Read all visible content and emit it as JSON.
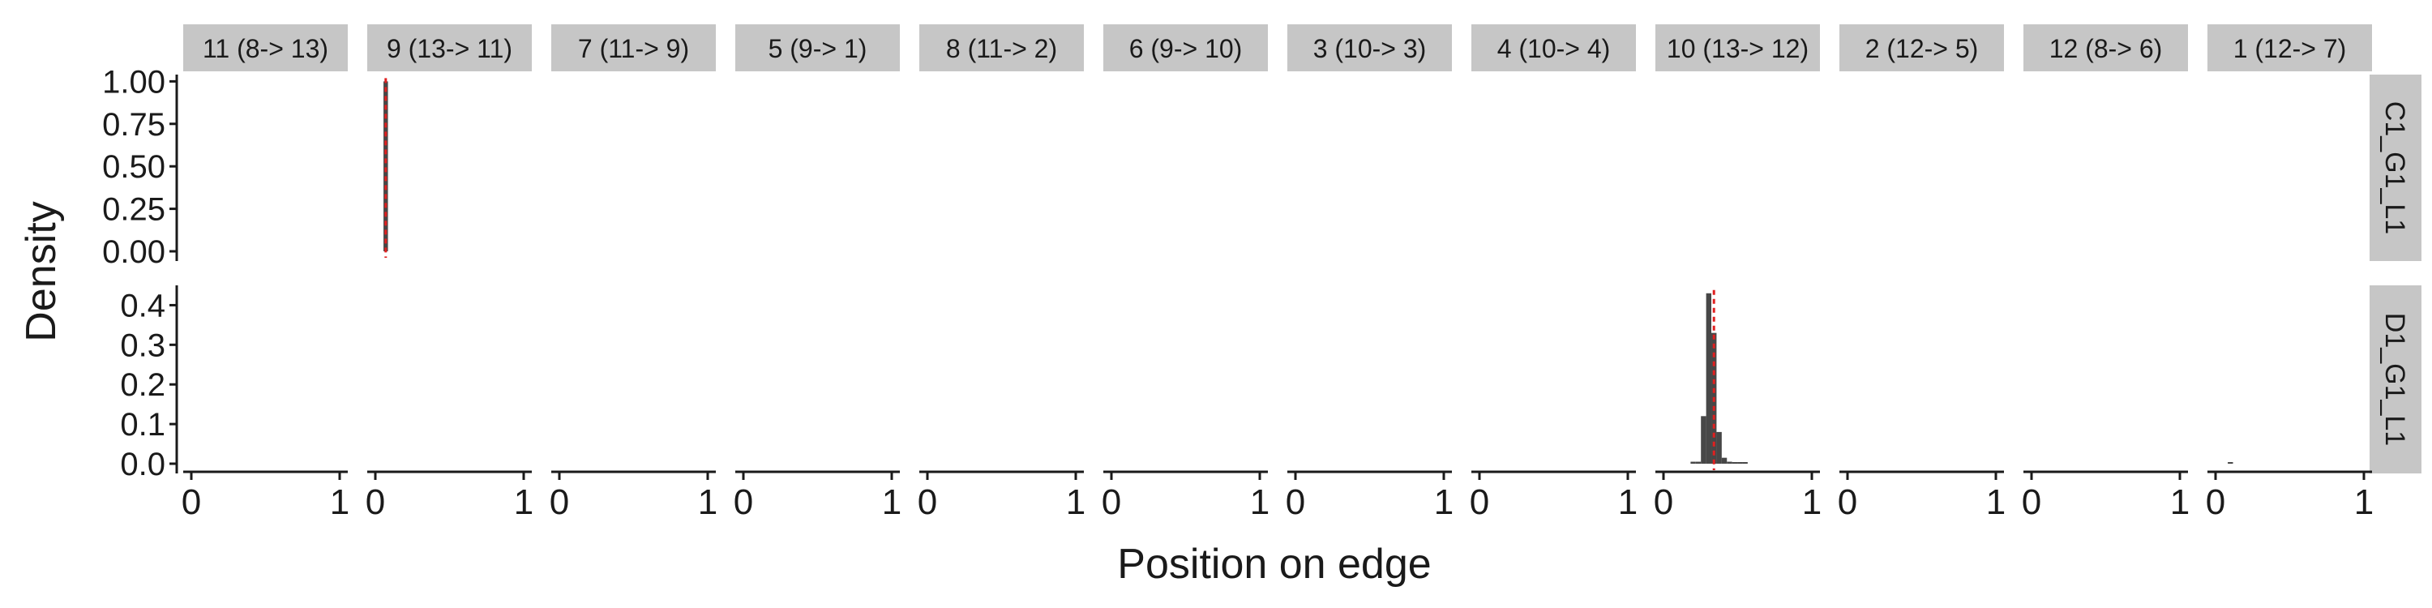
{
  "chart_data": {
    "type": "bar",
    "xlabel": "Position on edge",
    "ylabel": "Density",
    "columns": [
      "11 (8-> 13)",
      "9 (13-> 11)",
      "7 (11-> 9)",
      "5 (9-> 1)",
      "8 (11-> 2)",
      "6 (9-> 10)",
      "3 (10-> 3)",
      "4 (10-> 4)",
      "10 (13-> 12)",
      "2 (12-> 5)",
      "12 (8-> 6)",
      "1 (12-> 7)"
    ],
    "rows": [
      {
        "name": "C1_G1_L1",
        "ylim": [
          0,
          1.04
        ],
        "yticks": [
          0.0,
          0.25,
          0.5,
          0.75,
          1.0
        ],
        "ytick_labels": [
          "0.00",
          "0.25",
          "0.50",
          "0.75",
          "1.00"
        ]
      },
      {
        "name": "D1_G1_L1",
        "ylim": [
          0,
          0.45
        ],
        "yticks": [
          0.0,
          0.1,
          0.2,
          0.3,
          0.4
        ],
        "ytick_labels": [
          "0.0",
          "0.1",
          "0.2",
          "0.3",
          "0.4"
        ]
      }
    ],
    "xlim": [
      0,
      1
    ],
    "xticks": [
      0,
      1
    ],
    "xtick_labels": [
      "0",
      "1"
    ],
    "bar_color": "#474747",
    "marker_color": "#e02020",
    "histograms": [
      {
        "row": 0,
        "column": 1,
        "bin_width": 0.03,
        "bins": [
          {
            "x": 0.07,
            "y": 1.0
          }
        ],
        "marker_x": 0.07
      },
      {
        "row": 1,
        "column": 8,
        "bin_width": 0.035,
        "bins": [
          {
            "x": 0.2,
            "y": 0.005
          },
          {
            "x": 0.235,
            "y": 0.005
          },
          {
            "x": 0.27,
            "y": 0.12
          },
          {
            "x": 0.305,
            "y": 0.43
          },
          {
            "x": 0.34,
            "y": 0.33
          },
          {
            "x": 0.375,
            "y": 0.08
          },
          {
            "x": 0.41,
            "y": 0.015
          },
          {
            "x": 0.445,
            "y": 0.005
          },
          {
            "x": 0.48,
            "y": 0.003
          },
          {
            "x": 0.515,
            "y": 0.002
          },
          {
            "x": 0.55,
            "y": 0.001
          }
        ],
        "marker_x": 0.34
      },
      {
        "row": 1,
        "column": 11,
        "bin_width": 0.035,
        "bins": [
          {
            "x": 0.1,
            "y": 0.004
          }
        ]
      }
    ]
  }
}
